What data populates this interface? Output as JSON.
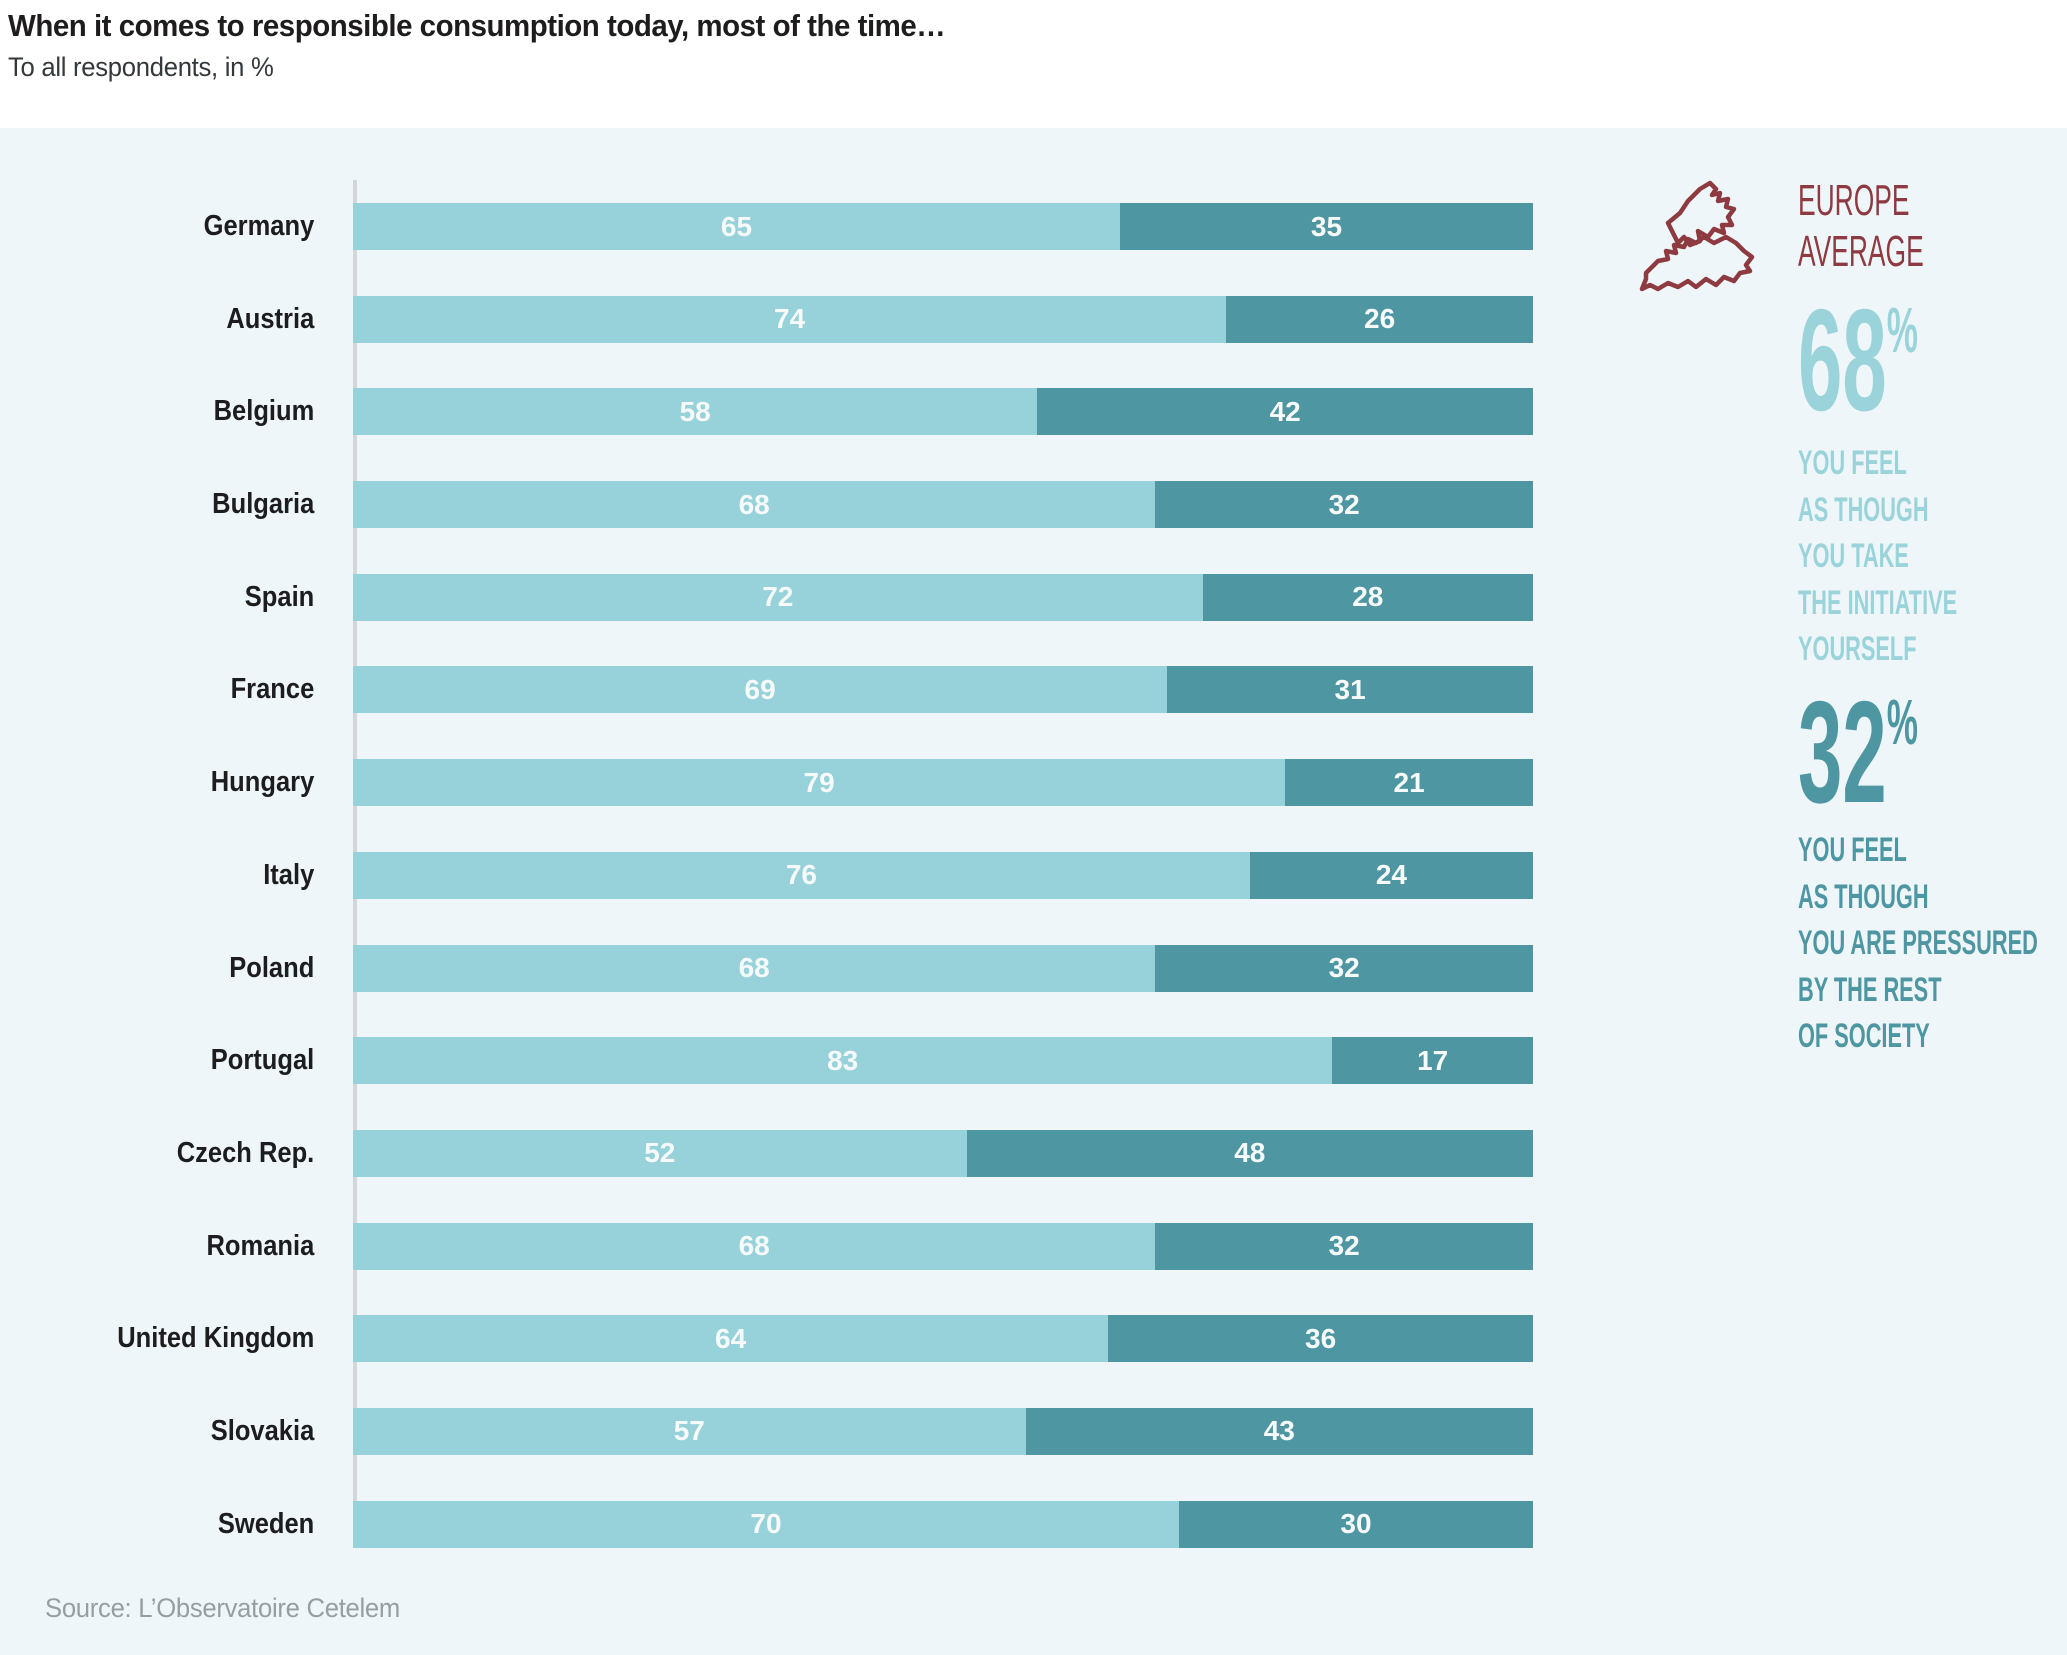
{
  "header": {
    "title": "When it comes to responsible consumption today, most of the time…",
    "subtitle": "To all respondents, in %"
  },
  "source": {
    "text": "Source: L’Observatoire Cetelem"
  },
  "europe_average": {
    "label_line1": "EUROPE",
    "label_line2": "AVERAGE",
    "accent_color": "#8e3a41",
    "initiative": {
      "value": "68",
      "unit": "%",
      "color": "#9bd3db",
      "lines": [
        "YOU FEEL",
        "AS THOUGH",
        "YOU TAKE",
        "THE INITIATIVE",
        "YOURSELF"
      ]
    },
    "pressured": {
      "value": "32",
      "unit": "%",
      "color": "#4e96a2",
      "lines": [
        "YOU FEEL",
        "AS THOUGH",
        "YOU ARE PRESSURED",
        "BY THE REST",
        "OF SOCIETY"
      ]
    }
  },
  "chart_data": {
    "type": "bar",
    "stacked": true,
    "orientation": "horizontal",
    "value_range": [
      0,
      100
    ],
    "grid": false,
    "legend_position": "right",
    "categories": [
      "Germany",
      "Austria",
      "Belgium",
      "Bulgaria",
      "Spain",
      "France",
      "Hungary",
      "Italy",
      "Poland",
      "Portugal",
      "Czech Rep.",
      "Romania",
      "United Kingdom",
      "Slovakia",
      "Sweden"
    ],
    "series": [
      {
        "name": "You feel as though you take the initiative yourself",
        "color": "#97d2da",
        "values": [
          65,
          74,
          58,
          68,
          72,
          69,
          79,
          76,
          68,
          83,
          52,
          68,
          64,
          57,
          70
        ]
      },
      {
        "name": "You feel as though you are pressured by the rest of society",
        "color": "#4e96a2",
        "values": [
          35,
          26,
          42,
          32,
          28,
          31,
          21,
          24,
          32,
          17,
          48,
          32,
          36,
          43,
          30
        ]
      }
    ]
  }
}
